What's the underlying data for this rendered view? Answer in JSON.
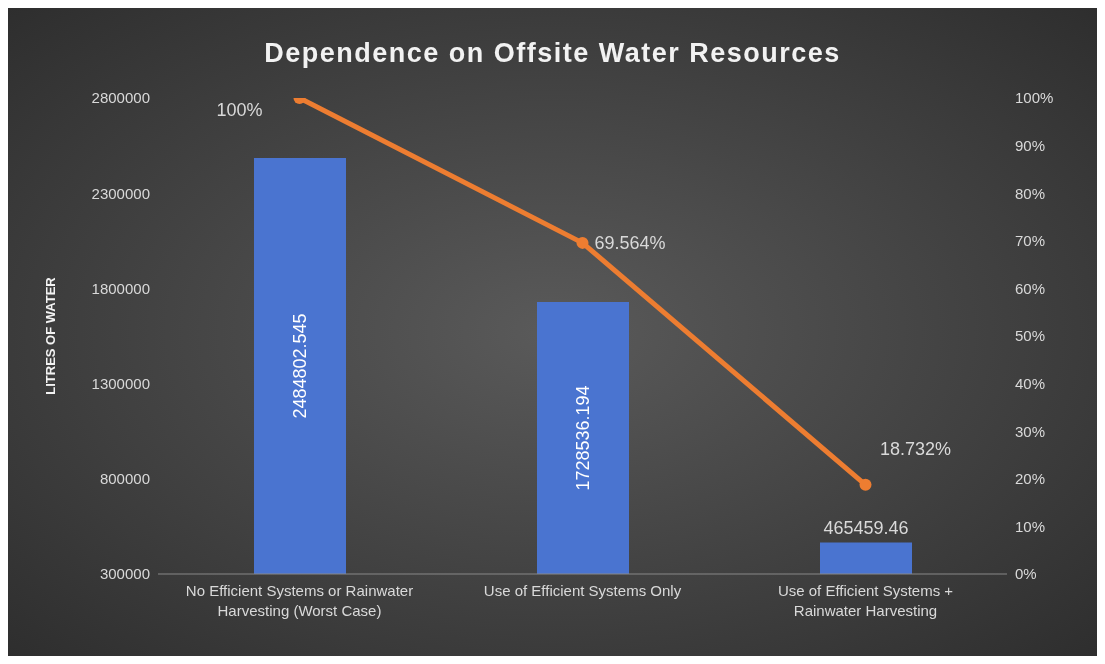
{
  "chart_data": {
    "type": "bar",
    "title": "Dependence on Offsite Water Resources",
    "ylabel": "LITRES OF WATER",
    "categories": [
      "No Efficient Systems or Rainwater Harvesting (Worst Case)",
      "Use of Efficient Systems Only",
      "Use of Efficient Systems + Rainwater Harvesting"
    ],
    "series": [
      {
        "color": "#4a74d0",
        "values": [
          2484802.545,
          1728536.194,
          465459.46
        ],
        "value_labels": [
          "2484802.545",
          "1728536.194",
          "465459.46"
        ]
      },
      {
        "type": "line",
        "axis": "y2",
        "color": "#ed7d31",
        "values": [
          100,
          69.564,
          18.732
        ],
        "value_labels": [
          "100%",
          "69.564%",
          "18.732%"
        ]
      }
    ],
    "ylim": [
      300000,
      2800000
    ],
    "yticks": [
      300000,
      800000,
      1300000,
      1800000,
      2300000,
      2800000
    ],
    "y2lim": [
      0,
      100
    ],
    "y2ticks": [
      {
        "value": 0,
        "label": "0%"
      },
      {
        "value": 10,
        "label": "10%"
      },
      {
        "value": 20,
        "label": "20%"
      },
      {
        "value": 30,
        "label": "30%"
      },
      {
        "value": 40,
        "label": "40%"
      },
      {
        "value": 50,
        "label": "50%"
      },
      {
        "value": 60,
        "label": "60%"
      },
      {
        "value": 70,
        "label": "70%"
      },
      {
        "value": 80,
        "label": "80%"
      },
      {
        "value": 90,
        "label": "90%"
      },
      {
        "value": 100,
        "label": "100%"
      }
    ],
    "grid": false,
    "legend": false,
    "marker": "circle",
    "line_style": "solid"
  }
}
